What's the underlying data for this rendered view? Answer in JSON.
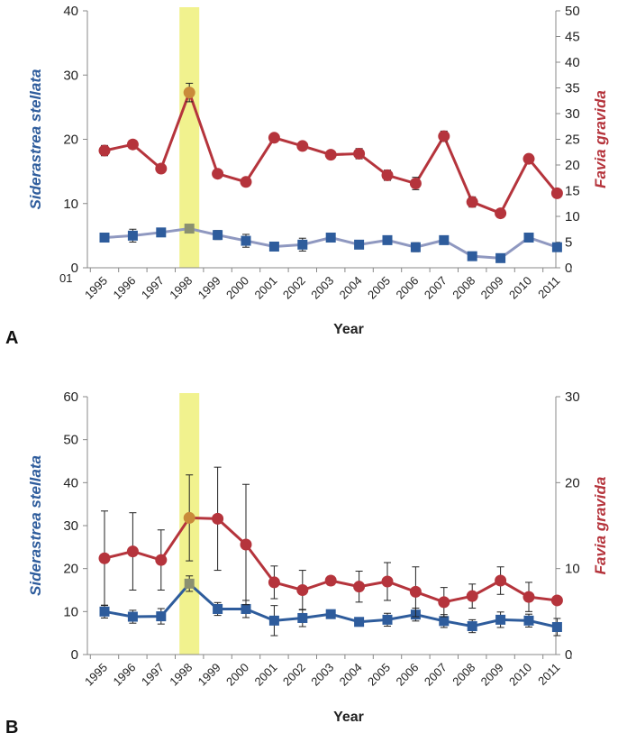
{
  "colors": {
    "siderastrea": "#2e5c9c",
    "siderastrea_faded": "#8f98c0",
    "favia": "#b5343c",
    "highlight": "#eef07a",
    "axis": "#888888"
  },
  "chart_data": [
    {
      "type": "line",
      "panel_label": "A",
      "xlabel": "Year",
      "ylabel_left": "Siderastrea stellata",
      "ylabel_right": "Favia gravida",
      "extra_label": "01",
      "ylim_left": [
        0,
        40
      ],
      "ylim_right": [
        0,
        50
      ],
      "yticks_left": [
        0,
        10,
        20,
        30,
        40
      ],
      "yticks_right": [
        0,
        5,
        10,
        15,
        20,
        25,
        30,
        35,
        40,
        45,
        50
      ],
      "categories": [
        "1995",
        "1996",
        "1997",
        "1998",
        "1999",
        "2000",
        "2001",
        "2002",
        "2003",
        "2004",
        "2005",
        "2006",
        "2007",
        "2008",
        "2009",
        "2010",
        "2011"
      ],
      "highlight_year": "1998",
      "series": [
        {
          "name": "Siderastrea stellata",
          "axis": "left",
          "marker": "square",
          "values": [
            4.7,
            5.0,
            5.5,
            6.1,
            5.1,
            4.2,
            3.3,
            3.6,
            4.7,
            3.6,
            4.3,
            3.2,
            4.3,
            1.8,
            1.5,
            4.7,
            3.2
          ],
          "errors": [
            0.4,
            1.0,
            0.4,
            0.3,
            0.7,
            1.0,
            0.2,
            1.0,
            0.3,
            0.3,
            0.3,
            0.7,
            0.4,
            0.3,
            0.2,
            0.4,
            0.4
          ]
        },
        {
          "name": "Favia gravida",
          "axis": "right",
          "marker": "circle",
          "values": [
            22.8,
            24.0,
            19.3,
            34.1,
            18.3,
            16.7,
            25.3,
            23.7,
            22.0,
            22.2,
            18.0,
            16.4,
            25.6,
            12.8,
            10.6,
            21.2,
            14.5
          ],
          "errors": [
            1.0,
            0.8,
            0.6,
            1.8,
            0.4,
            0.4,
            0.4,
            0.5,
            0.4,
            1.0,
            1.0,
            1.2,
            1.0,
            1.0,
            0.4,
            0.4,
            0.4
          ]
        }
      ]
    },
    {
      "type": "line",
      "panel_label": "B",
      "xlabel": "Year",
      "ylabel_left": "Siderastrea stellata",
      "ylabel_right": "Favia gravida",
      "ylim_left": [
        0,
        60
      ],
      "ylim_right": [
        0,
        30
      ],
      "yticks_left": [
        0,
        10,
        20,
        30,
        40,
        50,
        60
      ],
      "yticks_right": [
        0,
        10,
        20,
        30
      ],
      "categories": [
        "1995",
        "1996",
        "1997",
        "1998",
        "1999",
        "2000",
        "2001",
        "2002",
        "2003",
        "2004",
        "2005",
        "2006",
        "2007",
        "2008",
        "2009",
        "2010",
        "2011"
      ],
      "highlight_year": "1998",
      "series": [
        {
          "name": "Siderastrea stellata",
          "axis": "left",
          "marker": "square",
          "values": [
            10.0,
            8.8,
            8.9,
            16.5,
            10.6,
            10.6,
            7.9,
            8.5,
            9.4,
            7.6,
            8.1,
            9.3,
            7.8,
            6.6,
            8.1,
            7.9,
            6.4
          ],
          "errors": [
            1.5,
            1.5,
            1.8,
            1.8,
            1.5,
            2.0,
            3.5,
            2.0,
            0.8,
            1.0,
            1.5,
            1.5,
            1.5,
            1.5,
            1.8,
            1.5,
            2.0
          ]
        },
        {
          "name": "Favia gravida",
          "axis": "right",
          "marker": "circle",
          "values": [
            11.2,
            12.0,
            11.0,
            15.9,
            15.8,
            12.8,
            8.4,
            7.5,
            8.6,
            7.9,
            8.5,
            7.3,
            6.1,
            6.8,
            8.6,
            6.7,
            6.3
          ],
          "errors": [
            5.5,
            4.5,
            3.5,
            5.0,
            6.0,
            7.0,
            1.9,
            2.3,
            0.5,
            1.8,
            2.2,
            2.9,
            1.7,
            1.4,
            1.6,
            1.7,
            0.4
          ]
        }
      ]
    }
  ]
}
